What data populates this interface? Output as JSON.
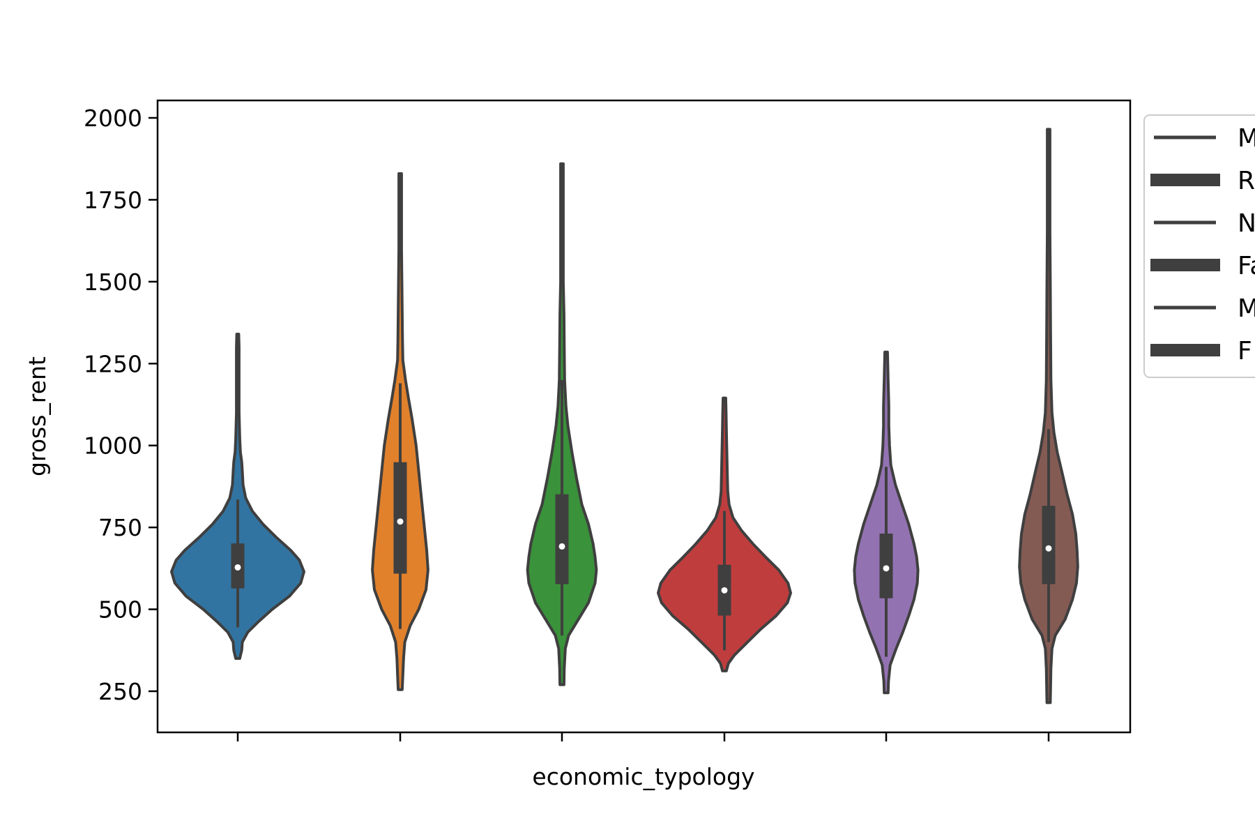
{
  "chart_data": {
    "type": "violin",
    "xlabel": "economic_typology",
    "ylabel": "gross_rent",
    "ylim": [
      200,
      2050
    ],
    "yticks": [
      250,
      500,
      750,
      1000,
      1250,
      1500,
      1750,
      2000
    ],
    "grid": false,
    "legend_position": "outside-right",
    "legend": [
      "M",
      "R",
      "N",
      "Fa",
      "M",
      "F"
    ],
    "violin_outline_color": "#3f3f3f",
    "series": [
      {
        "color": "#3274a1",
        "q1": 565,
        "median": 628,
        "q3": 700,
        "whisker_low": 445,
        "whisker_high": 835,
        "min": 350,
        "max": 1340,
        "density": [
          [
            350,
            0.03
          ],
          [
            375,
            0.06
          ],
          [
            400,
            0.07
          ],
          [
            430,
            0.15
          ],
          [
            460,
            0.3
          ],
          [
            500,
            0.52
          ],
          [
            540,
            0.78
          ],
          [
            580,
            0.95
          ],
          [
            615,
            1.0
          ],
          [
            650,
            0.93
          ],
          [
            680,
            0.8
          ],
          [
            720,
            0.58
          ],
          [
            760,
            0.38
          ],
          [
            800,
            0.22
          ],
          [
            840,
            0.12
          ],
          [
            880,
            0.08
          ],
          [
            920,
            0.07
          ],
          [
            950,
            0.06
          ],
          [
            980,
            0.04
          ],
          [
            1020,
            0.03
          ],
          [
            1060,
            0.025
          ],
          [
            1100,
            0.02
          ],
          [
            1200,
            0.02
          ],
          [
            1300,
            0.02
          ],
          [
            1340,
            0.015
          ]
        ]
      },
      {
        "color": "#e1812c",
        "q1": 610,
        "median": 768,
        "q3": 948,
        "whisker_low": 440,
        "whisker_high": 1190,
        "min": 255,
        "max": 1830,
        "density": [
          [
            255,
            0.03
          ],
          [
            300,
            0.04
          ],
          [
            350,
            0.05
          ],
          [
            400,
            0.07
          ],
          [
            450,
            0.15
          ],
          [
            500,
            0.28
          ],
          [
            560,
            0.39
          ],
          [
            620,
            0.42
          ],
          [
            680,
            0.4
          ],
          [
            760,
            0.36
          ],
          [
            840,
            0.32
          ],
          [
            920,
            0.28
          ],
          [
            1000,
            0.24
          ],
          [
            1080,
            0.18
          ],
          [
            1150,
            0.12
          ],
          [
            1200,
            0.08
          ],
          [
            1260,
            0.04
          ],
          [
            1320,
            0.035
          ],
          [
            1400,
            0.03
          ],
          [
            1500,
            0.025
          ],
          [
            1600,
            0.02
          ],
          [
            1700,
            0.02
          ],
          [
            1830,
            0.02
          ]
        ]
      },
      {
        "color": "#3a923a",
        "q1": 578,
        "median": 692,
        "q3": 850,
        "whisker_low": 420,
        "whisker_high": 1200,
        "min": 270,
        "max": 1860,
        "density": [
          [
            270,
            0.03
          ],
          [
            320,
            0.035
          ],
          [
            380,
            0.05
          ],
          [
            420,
            0.1
          ],
          [
            470,
            0.25
          ],
          [
            520,
            0.4
          ],
          [
            580,
            0.5
          ],
          [
            620,
            0.52
          ],
          [
            660,
            0.5
          ],
          [
            700,
            0.47
          ],
          [
            760,
            0.4
          ],
          [
            820,
            0.3
          ],
          [
            900,
            0.22
          ],
          [
            980,
            0.15
          ],
          [
            1060,
            0.09
          ],
          [
            1120,
            0.06
          ],
          [
            1200,
            0.04
          ],
          [
            1300,
            0.035
          ],
          [
            1400,
            0.03
          ],
          [
            1500,
            0.02
          ],
          [
            1600,
            0.02
          ],
          [
            1700,
            0.02
          ],
          [
            1860,
            0.02
          ]
        ]
      },
      {
        "color": "#c03d3e",
        "q1": 482,
        "median": 558,
        "q3": 635,
        "whisker_low": 375,
        "whisker_high": 800,
        "min": 312,
        "max": 1145,
        "density": [
          [
            312,
            0.03
          ],
          [
            335,
            0.06
          ],
          [
            360,
            0.15
          ],
          [
            400,
            0.35
          ],
          [
            440,
            0.55
          ],
          [
            480,
            0.78
          ],
          [
            520,
            0.95
          ],
          [
            550,
            1.0
          ],
          [
            580,
            0.96
          ],
          [
            620,
            0.82
          ],
          [
            660,
            0.62
          ],
          [
            700,
            0.43
          ],
          [
            740,
            0.26
          ],
          [
            780,
            0.13
          ],
          [
            820,
            0.07
          ],
          [
            860,
            0.05
          ],
          [
            900,
            0.045
          ],
          [
            950,
            0.04
          ],
          [
            1000,
            0.035
          ],
          [
            1050,
            0.03
          ],
          [
            1100,
            0.025
          ],
          [
            1145,
            0.02
          ]
        ]
      },
      {
        "color": "#9372b2",
        "q1": 535,
        "median": 625,
        "q3": 730,
        "whisker_low": 355,
        "whisker_high": 935,
        "min": 245,
        "max": 1285,
        "density": [
          [
            245,
            0.03
          ],
          [
            280,
            0.035
          ],
          [
            330,
            0.06
          ],
          [
            380,
            0.15
          ],
          [
            430,
            0.25
          ],
          [
            480,
            0.34
          ],
          [
            530,
            0.42
          ],
          [
            580,
            0.47
          ],
          [
            620,
            0.48
          ],
          [
            660,
            0.46
          ],
          [
            700,
            0.42
          ],
          [
            760,
            0.34
          ],
          [
            820,
            0.24
          ],
          [
            880,
            0.14
          ],
          [
            940,
            0.07
          ],
          [
            1000,
            0.05
          ],
          [
            1060,
            0.04
          ],
          [
            1120,
            0.04
          ],
          [
            1200,
            0.03
          ],
          [
            1285,
            0.02
          ]
        ]
      },
      {
        "color": "#845b53",
        "q1": 578,
        "median": 686,
        "q3": 815,
        "whisker_low": 400,
        "whisker_high": 1050,
        "min": 215,
        "max": 1965,
        "density": [
          [
            215,
            0.025
          ],
          [
            260,
            0.03
          ],
          [
            320,
            0.035
          ],
          [
            380,
            0.05
          ],
          [
            420,
            0.1
          ],
          [
            470,
            0.25
          ],
          [
            530,
            0.36
          ],
          [
            580,
            0.42
          ],
          [
            630,
            0.44
          ],
          [
            680,
            0.43
          ],
          [
            730,
            0.41
          ],
          [
            790,
            0.36
          ],
          [
            850,
            0.28
          ],
          [
            920,
            0.2
          ],
          [
            980,
            0.13
          ],
          [
            1040,
            0.08
          ],
          [
            1100,
            0.05
          ],
          [
            1200,
            0.035
          ],
          [
            1350,
            0.03
          ],
          [
            1500,
            0.025
          ],
          [
            1650,
            0.02
          ],
          [
            1800,
            0.02
          ],
          [
            1965,
            0.02
          ]
        ]
      }
    ]
  }
}
